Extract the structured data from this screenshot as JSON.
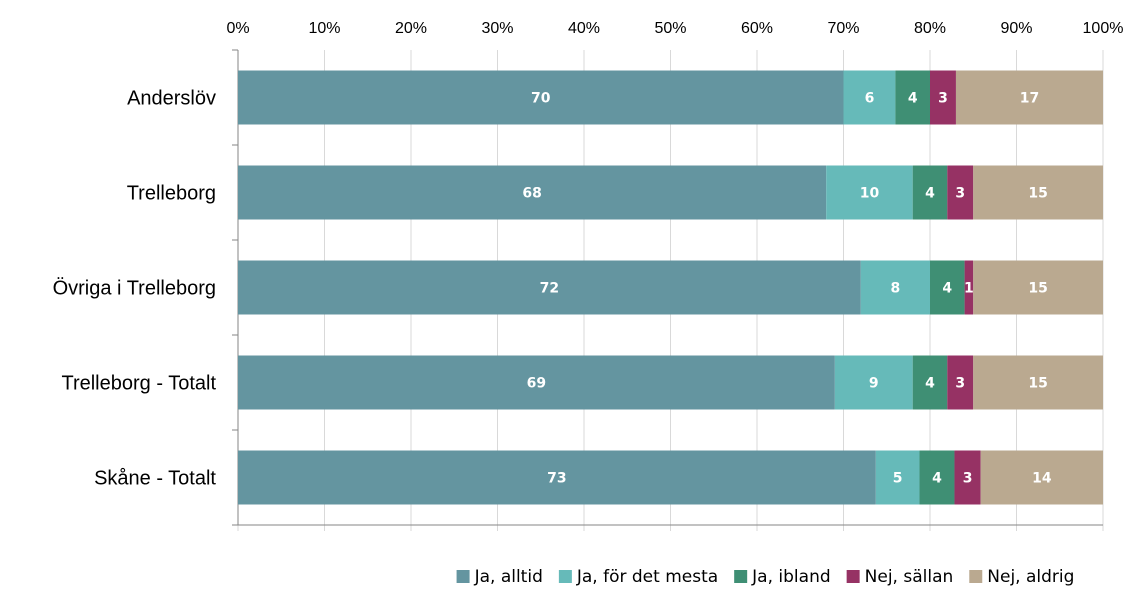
{
  "chart_data": {
    "type": "bar",
    "orientation": "horizontal",
    "stacked": true,
    "percent_stacked": true,
    "categories": [
      "Anderslöv",
      "Trelleborg",
      "Övriga i Trelleborg",
      "Trelleborg - Totalt",
      "Skåne - Totalt"
    ],
    "series": [
      {
        "name": "Ja, alltid",
        "color": "#6495a0",
        "values": [
          70,
          68,
          72,
          69,
          73
        ]
      },
      {
        "name": "Ja, för det mesta",
        "color": "#66bab9",
        "values": [
          6,
          10,
          8,
          9,
          5
        ]
      },
      {
        "name": "Ja, ibland",
        "color": "#3f8f74",
        "values": [
          4,
          4,
          4,
          4,
          4
        ]
      },
      {
        "name": "Nej, sällan",
        "color": "#963264",
        "values": [
          3,
          3,
          1,
          3,
          3
        ]
      },
      {
        "name": "Nej, aldrig",
        "color": "#baa990",
        "values": [
          17,
          15,
          15,
          15,
          14
        ]
      }
    ],
    "x_ticks": [
      "0%",
      "10%",
      "20%",
      "30%",
      "40%",
      "50%",
      "60%",
      "70%",
      "80%",
      "90%",
      "100%"
    ],
    "xlim": [
      0,
      100
    ],
    "x_axis_position": "top",
    "grid": true,
    "legend": "bottom",
    "title": "",
    "xlabel": "",
    "ylabel": ""
  }
}
